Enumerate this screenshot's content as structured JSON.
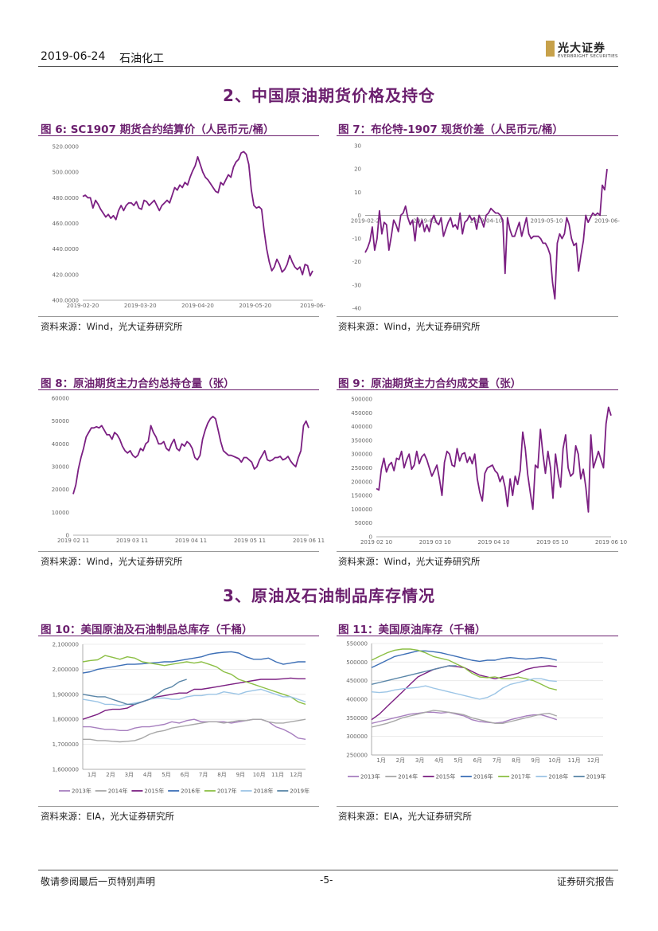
{
  "header": {
    "date": "2019-06-24",
    "category": "石油化工",
    "logo_cn": "光大证券",
    "logo_en": "EVERBRIGHT SECURITIES"
  },
  "sections": {
    "s2": "2、中国原油期货价格及持仓",
    "s3": "3、原油及石油制品库存情况"
  },
  "colors": {
    "accent": "#6b1f6e",
    "series_main": "#7b1f82"
  },
  "figures": {
    "f6": {
      "title": "图 6:  SC1907 期货合约结算价（人民币元/桶）",
      "source": "资料来源：Wind，光大证券研究所"
    },
    "f7": {
      "title": "图 7：布伦特-1907 现货价差（人民币元/桶）",
      "source": "资料来源：Wind，光大证券研究所"
    },
    "f8": {
      "title": "图 8：原油期货主力合约总持仓量（张）",
      "source": "资料来源：Wind，光大证券研究所"
    },
    "f9": {
      "title": "图 9：原油期货主力合约成交量（张）",
      "source": "资料来源：Wind，光大证券研究所"
    },
    "f10": {
      "title": "图 10：美国原油及石油制品总库存（千桶）",
      "source": "资料来源：EIA，光大证券研究所"
    },
    "f11": {
      "title": "图 11：美国原油库存（千桶）",
      "source": "资料来源：EIA，光大证券研究所"
    }
  },
  "footer": {
    "left": "敬请参阅最后一页特别声明",
    "center": "-5-",
    "right": "证券研究报告"
  },
  "chart_data": [
    {
      "id": "c6",
      "type": "line",
      "title": "图 6:  SC1907 期货合约结算价（人民币元/桶）",
      "xlabels": [
        "2019-02-20",
        "2019-03-20",
        "2019-04-20",
        "2019-05-20",
        "2019-06-"
      ],
      "yticks": [
        "400.0000",
        "420.0000",
        "440.0000",
        "460.0000",
        "480.0000",
        "500.0000",
        "520.0000"
      ],
      "ylim": [
        400,
        520
      ],
      "values": [
        481,
        482,
        480,
        480,
        472,
        478,
        475,
        471,
        468,
        465,
        467,
        464,
        466,
        463,
        470,
        474,
        470,
        474,
        476,
        476,
        474,
        477,
        472,
        471,
        478,
        477,
        474,
        476,
        478,
        474,
        470,
        474,
        476,
        478,
        476,
        482,
        488,
        486,
        490,
        488,
        492,
        490,
        496,
        501,
        505,
        512,
        506,
        500,
        496,
        494,
        491,
        488,
        485,
        484,
        492,
        490,
        494,
        498,
        496,
        504,
        508,
        510,
        515,
        516,
        514,
        506,
        486,
        474,
        472,
        473,
        471,
        454,
        440,
        430,
        423,
        426,
        432,
        428,
        422,
        424,
        428,
        435,
        430,
        426,
        424,
        426,
        420,
        428,
        427,
        419,
        423
      ]
    },
    {
      "id": "c7",
      "type": "line",
      "title": "图 7：布伦特-1907 现货价差（人民币元/桶）",
      "xlabels": [
        "2019-02-2",
        "2019-03-",
        "2019-04-10",
        "2019-05-10",
        "2019-06-"
      ],
      "yticks": [
        "-40",
        "-30",
        "-20",
        "-10",
        "0",
        "10",
        "20",
        "30"
      ],
      "ylim": [
        -40,
        30
      ],
      "values": [
        -16,
        -14,
        -11,
        -5,
        -15,
        -10,
        2,
        -8,
        -3,
        -4,
        -15,
        -9,
        -2,
        -4,
        -7,
        0,
        1,
        4,
        -1,
        -4,
        -2,
        -11,
        -1,
        -5,
        -2,
        -7,
        -4,
        -7,
        -2,
        0,
        -3,
        -4,
        -1,
        -9,
        -6,
        -3,
        -1,
        -5,
        -4,
        -6,
        1,
        -8,
        -3,
        -2,
        0,
        -2,
        -1,
        -6,
        0,
        -2,
        -5,
        0,
        1,
        3,
        2,
        1,
        1,
        0,
        -2,
        -25,
        -1,
        -6,
        -9,
        -9,
        -6,
        -3,
        -9,
        -5,
        -1,
        -8,
        -10,
        -9,
        -9,
        -9,
        -10,
        -12,
        -12,
        -14,
        -17,
        -29,
        -36,
        -12,
        -8,
        -10,
        -8,
        -1,
        -4,
        -10,
        -13,
        -12,
        -24,
        -17,
        -11,
        0,
        -3,
        -1,
        1,
        0,
        1,
        0,
        13,
        11,
        20
      ]
    },
    {
      "id": "c8",
      "type": "line",
      "title": "图 8：原油期货主力合约总持仓量（张）",
      "xlabels": [
        "2019 02 11",
        "2019 03 11",
        "2019 04 11",
        "2019 05 11",
        "2019 06 11"
      ],
      "yticks": [
        "0",
        "10000",
        "20000",
        "30000",
        "40000",
        "50000",
        "60000"
      ],
      "ylim": [
        0,
        60000
      ],
      "values": [
        18000,
        22000,
        29000,
        34000,
        38000,
        43000,
        45000,
        47000,
        47000,
        47500,
        47000,
        48000,
        46000,
        44000,
        44000,
        42000,
        45000,
        44000,
        42000,
        39000,
        37000,
        36000,
        37000,
        35000,
        34000,
        35000,
        38000,
        37000,
        40000,
        41000,
        48000,
        45000,
        43000,
        40000,
        40000,
        41000,
        38000,
        37000,
        40000,
        42000,
        38000,
        37000,
        40000,
        39000,
        41000,
        40000,
        38000,
        34000,
        33000,
        35000,
        42000,
        46000,
        49000,
        51000,
        52000,
        51000,
        46000,
        41000,
        37000,
        36000,
        35000,
        35000,
        34500,
        34000,
        33500,
        32000,
        34000,
        34000,
        33000,
        32000,
        29000,
        30000,
        33000,
        35000,
        37000,
        33000,
        32500,
        33000,
        34000,
        34000,
        34500,
        33000,
        33500,
        34500,
        32500,
        31000,
        30000,
        34000,
        37000,
        48000,
        50000,
        47000
      ]
    },
    {
      "id": "c9",
      "type": "line",
      "title": "图 9：原油期货主力合约成交量（张）",
      "xlabels": [
        "2019 02 10",
        "2019 03 10",
        "2019 04 10",
        "2019 05 10",
        "2019 06 10"
      ],
      "yticks": [
        "0",
        "50000",
        "100000",
        "150000",
        "200000",
        "250000",
        "300000",
        "350000",
        "400000",
        "450000",
        "500000"
      ],
      "ylim": [
        0,
        500000
      ],
      "values": [
        175000,
        170000,
        245000,
        285000,
        235000,
        260000,
        270000,
        240000,
        285000,
        280000,
        310000,
        250000,
        280000,
        300000,
        245000,
        260000,
        310000,
        265000,
        290000,
        300000,
        280000,
        250000,
        220000,
        240000,
        260000,
        210000,
        150000,
        270000,
        310000,
        300000,
        260000,
        255000,
        320000,
        275000,
        300000,
        305000,
        270000,
        290000,
        265000,
        300000,
        210000,
        160000,
        130000,
        230000,
        250000,
        255000,
        260000,
        240000,
        230000,
        200000,
        220000,
        180000,
        110000,
        210000,
        150000,
        220000,
        190000,
        240000,
        380000,
        320000,
        225000,
        160000,
        100000,
        260000,
        250000,
        390000,
        300000,
        230000,
        310000,
        250000,
        140000,
        300000,
        230000,
        180000,
        320000,
        370000,
        250000,
        220000,
        230000,
        330000,
        300000,
        210000,
        245000,
        180000,
        90000,
        370000,
        250000,
        280000,
        310000,
        280000,
        250000,
        410000,
        470000,
        440000
      ]
    },
    {
      "id": "c10",
      "type": "line",
      "title": "图 10：美国原油及石油制品总库存（千桶）",
      "xlabels": [
        "1月",
        "2月",
        "3月",
        "4月",
        "5月",
        "6月",
        "7月",
        "8月",
        "9月",
        "10月",
        "11月",
        "12月"
      ],
      "yticks": [
        "1,600000",
        "1,700000",
        "1,800000",
        "1,900000",
        "2,000000",
        "2,100000"
      ],
      "ylim": [
        1600000,
        2100000
      ],
      "legend": [
        "2013年",
        "2014年",
        "2015年",
        "2016年",
        "2017年",
        "2018年",
        "2019年"
      ],
      "series": [
        {
          "name": "2013年",
          "color": "#a77fbf",
          "values": [
            1770000,
            1770000,
            1765000,
            1760000,
            1760000,
            1755000,
            1755000,
            1765000,
            1770000,
            1770000,
            1775000,
            1780000,
            1790000,
            1785000,
            1795000,
            1800000,
            1790000,
            1790000,
            1790000,
            1790000,
            1785000,
            1790000,
            1795000,
            1800000,
            1800000,
            1790000,
            1770000,
            1760000,
            1745000,
            1725000,
            1720000
          ]
        },
        {
          "name": "2014年",
          "color": "#a8a8a8",
          "values": [
            1720000,
            1720000,
            1715000,
            1715000,
            1712000,
            1710000,
            1712000,
            1715000,
            1725000,
            1740000,
            1750000,
            1755000,
            1765000,
            1770000,
            1775000,
            1780000,
            1785000,
            1790000,
            1790000,
            1785000,
            1790000,
            1795000,
            1795000,
            1800000,
            1800000,
            1790000,
            1785000,
            1785000,
            1790000,
            1795000,
            1800000
          ]
        },
        {
          "name": "2015年",
          "color": "#7b1f82",
          "values": [
            1800000,
            1810000,
            1820000,
            1835000,
            1840000,
            1840000,
            1845000,
            1860000,
            1870000,
            1880000,
            1890000,
            1895000,
            1900000,
            1905000,
            1905000,
            1920000,
            1920000,
            1925000,
            1930000,
            1935000,
            1940000,
            1945000,
            1950000,
            1955000,
            1960000,
            1960000,
            1960000,
            1962000,
            1965000,
            1962000,
            1962000
          ]
        },
        {
          "name": "2016年",
          "color": "#3d6fb6",
          "values": [
            1985000,
            1990000,
            2000000,
            2005000,
            2010000,
            2015000,
            2020000,
            2020000,
            2022000,
            2025000,
            2027000,
            2030000,
            2030000,
            2035000,
            2040000,
            2045000,
            2050000,
            2060000,
            2065000,
            2068000,
            2070000,
            2065000,
            2050000,
            2040000,
            2040000,
            2045000,
            2030000,
            2020000,
            2025000,
            2030000,
            2030000
          ]
        },
        {
          "name": "2017年",
          "color": "#8cbf45",
          "values": [
            2030000,
            2035000,
            2038000,
            2055000,
            2048000,
            2040000,
            2050000,
            2045000,
            2030000,
            2025000,
            2020000,
            2015000,
            2020000,
            2025000,
            2030000,
            2025000,
            2030000,
            2020000,
            2010000,
            1990000,
            1980000,
            1960000,
            1950000,
            1940000,
            1930000,
            1920000,
            1910000,
            1900000,
            1890000,
            1870000,
            1860000
          ]
        },
        {
          "name": "2018年",
          "color": "#9cc5e6",
          "values": [
            1880000,
            1875000,
            1870000,
            1860000,
            1860000,
            1855000,
            1860000,
            1865000,
            1870000,
            1880000,
            1885000,
            1885000,
            1880000,
            1880000,
            1890000,
            1895000,
            1895000,
            1900000,
            1900000,
            1910000,
            1905000,
            1900000,
            1910000,
            1915000,
            1920000,
            1910000,
            1900000,
            1890000,
            1890000,
            1880000,
            1870000
          ]
        },
        {
          "name": "2019年",
          "color": "#5a86a8",
          "values": [
            1900000,
            1895000,
            1890000,
            1890000,
            1880000,
            1870000,
            1860000,
            1860000,
            1870000,
            1880000,
            1900000,
            1920000,
            1930000,
            1950000,
            1960000
          ]
        }
      ]
    },
    {
      "id": "c11",
      "type": "line",
      "title": "图 11：美国原油库存（千桶）",
      "xlabels": [
        "1月",
        "2月",
        "3月",
        "4月",
        "5月",
        "6月",
        "7月",
        "8月",
        "9月",
        "10月",
        "11月",
        "12月"
      ],
      "yticks": [
        "250000",
        "300000",
        "350000",
        "400000",
        "450000",
        "500000",
        "550000"
      ],
      "ylim": [
        250000,
        550000
      ],
      "legend": [
        "2013年",
        "2014年",
        "2015年",
        "2016年",
        "2017年",
        "2018年",
        "2019年"
      ],
      "series": [
        {
          "name": "2013年",
          "color": "#a77fbf",
          "values": [
            335000,
            340000,
            345000,
            350000,
            355000,
            360000,
            362000,
            365000,
            365000,
            363000,
            365000,
            360000,
            355000,
            345000,
            340000,
            338000,
            336000,
            338000,
            345000,
            350000,
            355000,
            358000,
            358000,
            352000,
            345000
          ]
        },
        {
          "name": "2014年",
          "color": "#a8a8a8",
          "values": [
            325000,
            330000,
            335000,
            342000,
            350000,
            355000,
            360000,
            365000,
            370000,
            368000,
            365000,
            362000,
            358000,
            350000,
            345000,
            340000,
            335000,
            335000,
            340000,
            345000,
            350000,
            355000,
            360000,
            362000,
            355000
          ]
        },
        {
          "name": "2015年",
          "color": "#7b1f82",
          "values": [
            345000,
            360000,
            380000,
            400000,
            420000,
            440000,
            460000,
            470000,
            480000,
            485000,
            490000,
            488000,
            485000,
            475000,
            465000,
            460000,
            455000,
            460000,
            465000,
            470000,
            480000,
            485000,
            488000,
            490000,
            488000
          ]
        },
        {
          "name": "2016年",
          "color": "#3d6fb6",
          "values": [
            485000,
            495000,
            505000,
            515000,
            520000,
            525000,
            530000,
            530000,
            528000,
            525000,
            520000,
            515000,
            510000,
            505000,
            502000,
            505000,
            505000,
            510000,
            512000,
            510000,
            508000,
            510000,
            512000,
            510000,
            505000
          ]
        },
        {
          "name": "2017年",
          "color": "#8cbf45",
          "values": [
            505000,
            515000,
            525000,
            532000,
            535000,
            535000,
            532000,
            525000,
            515000,
            510000,
            505000,
            495000,
            485000,
            470000,
            460000,
            458000,
            460000,
            455000,
            455000,
            460000,
            455000,
            450000,
            440000,
            430000,
            425000
          ]
        },
        {
          "name": "2018年",
          "color": "#9cc5e6",
          "values": [
            420000,
            418000,
            420000,
            425000,
            428000,
            430000,
            432000,
            436000,
            430000,
            425000,
            420000,
            415000,
            410000,
            405000,
            400000,
            405000,
            415000,
            430000,
            440000,
            445000,
            450000,
            455000,
            455000,
            450000,
            448000
          ]
        },
        {
          "name": "2019年",
          "color": "#5a86a8",
          "values": [
            440000,
            445000,
            450000,
            455000,
            460000,
            465000,
            470000,
            475000,
            480000,
            485000,
            490000,
            490000
          ]
        }
      ]
    }
  ]
}
